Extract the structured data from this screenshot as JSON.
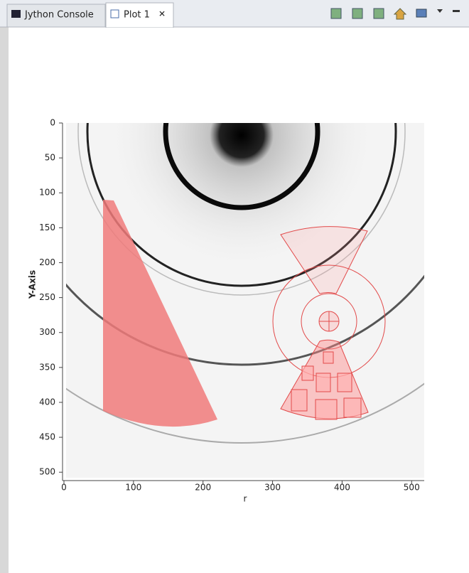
{
  "tabs": [
    "Jython Console",
    "Plot 1"
  ],
  "chart_data": {
    "type": "image",
    "xlabel": "r",
    "ylabel": "Y-Axis",
    "xlim": [
      0,
      512
    ],
    "ylim": [
      0,
      512
    ],
    "y_inverted": true,
    "xticks": [
      0,
      100,
      200,
      300,
      400,
      500
    ],
    "yticks": [
      0,
      50,
      100,
      150,
      200,
      250,
      300,
      350,
      400,
      450,
      500
    ]
  }
}
